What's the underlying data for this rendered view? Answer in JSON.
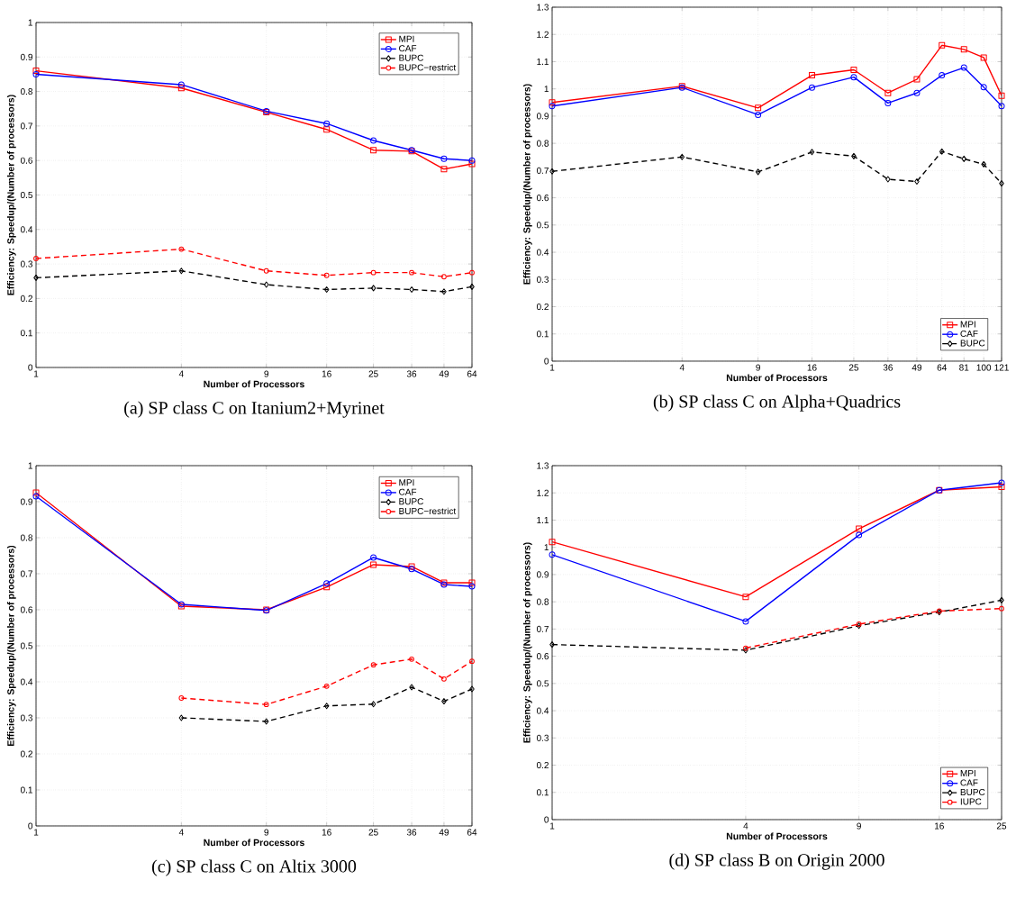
{
  "chart_data": [
    {
      "type": "line",
      "title": "(a) SP class C on Itanium2+Myrinet",
      "xlabel": "Number of Processors",
      "ylabel": "Efficiency: Speedup/(Number of processors)",
      "log": "x",
      "grid": true,
      "legend": "top right",
      "x": [
        1,
        4,
        9,
        16,
        25,
        36,
        49,
        64
      ],
      "xlim": [
        1,
        64
      ],
      "xticks": [
        1,
        4,
        9,
        16,
        25,
        36,
        49,
        64
      ],
      "ylim": [
        0,
        1
      ],
      "yticks": [
        0,
        0.1,
        0.2,
        0.3,
        0.4,
        0.5,
        0.6,
        0.7,
        0.8,
        0.9,
        1
      ],
      "series": [
        {
          "name": "MPI",
          "color": "#ff0000",
          "marker": "square",
          "line_style": "solid",
          "values": [
            0.86,
            0.81,
            0.74,
            0.69,
            0.63,
            0.627,
            0.575,
            0.59
          ]
        },
        {
          "name": "CAF",
          "color": "#0000ff",
          "marker": "circle",
          "line_style": "solid",
          "values": [
            0.85,
            0.82,
            0.743,
            0.707,
            0.658,
            0.63,
            0.605,
            0.6
          ]
        },
        {
          "name": "BUPC",
          "color": "#000000",
          "marker": "diamond",
          "line_style": "dashed",
          "values": [
            0.26,
            0.28,
            0.24,
            0.226,
            0.23,
            0.226,
            0.22,
            0.234
          ]
        },
        {
          "name": "BUPC−restrict",
          "color": "#ff0000",
          "marker": "circle",
          "line_style": "dashed",
          "values": [
            0.316,
            0.343,
            0.28,
            0.267,
            0.275,
            0.275,
            0.263,
            0.275
          ]
        }
      ]
    },
    {
      "type": "line",
      "title": "(b) SP class C on Alpha+Quadrics",
      "xlabel": "Number of Processors",
      "ylabel": "Efficiency: Speedup/(Number of processors)",
      "log": "x",
      "grid": true,
      "legend": "bottom right",
      "x": [
        1,
        4,
        9,
        16,
        25,
        36,
        49,
        64,
        81,
        100,
        121
      ],
      "xlim": [
        1,
        121
      ],
      "xticks": [
        1,
        4,
        9,
        16,
        25,
        36,
        49,
        64,
        81,
        100,
        121
      ],
      "ylim": [
        0,
        1.3
      ],
      "yticks": [
        0,
        0.1,
        0.2,
        0.3,
        0.4,
        0.5,
        0.6,
        0.7,
        0.8,
        0.9,
        1,
        1.1,
        1.2,
        1.3
      ],
      "series": [
        {
          "name": "MPI",
          "color": "#ff0000",
          "marker": "square",
          "line_style": "solid",
          "values": [
            0.95,
            1.01,
            0.93,
            1.05,
            1.07,
            0.985,
            1.035,
            1.16,
            1.145,
            1.115,
            0.975
          ]
        },
        {
          "name": "CAF",
          "color": "#0000ff",
          "marker": "circle",
          "line_style": "solid",
          "values": [
            0.937,
            1.005,
            0.905,
            1.005,
            1.043,
            0.948,
            0.985,
            1.05,
            1.078,
            1.006,
            0.937
          ]
        },
        {
          "name": "BUPC",
          "color": "#000000",
          "marker": "diamond",
          "line_style": "dashed",
          "values": [
            0.697,
            0.75,
            0.695,
            0.768,
            0.753,
            0.668,
            0.66,
            0.77,
            0.743,
            0.723,
            0.653
          ]
        }
      ]
    },
    {
      "type": "line",
      "title": "(c) SP class C on Altix 3000",
      "xlabel": "Number of Processors",
      "ylabel": "Efficiency: Speedup/(Number of processors)",
      "log": "x",
      "grid": true,
      "legend": "top right",
      "x": [
        1,
        4,
        9,
        16,
        25,
        36,
        49,
        64
      ],
      "xlim": [
        1,
        64
      ],
      "xticks": [
        1,
        4,
        9,
        16,
        25,
        36,
        49,
        64
      ],
      "ylim": [
        0,
        1
      ],
      "yticks": [
        0,
        0.1,
        0.2,
        0.3,
        0.4,
        0.5,
        0.6,
        0.7,
        0.8,
        0.9,
        1
      ],
      "series": [
        {
          "name": "MPI",
          "color": "#ff0000",
          "marker": "square",
          "line_style": "solid",
          "values": [
            0.925,
            0.61,
            0.6,
            0.663,
            0.725,
            0.72,
            0.675,
            0.675
          ]
        },
        {
          "name": "CAF",
          "color": "#0000ff",
          "marker": "circle",
          "line_style": "solid",
          "values": [
            0.915,
            0.615,
            0.598,
            0.673,
            0.745,
            0.713,
            0.67,
            0.665
          ]
        },
        {
          "name": "BUPC",
          "color": "#000000",
          "marker": "diamond",
          "line_style": "dashed",
          "values": [
            null,
            0.3,
            0.29,
            0.333,
            0.338,
            0.385,
            0.346,
            0.38
          ]
        },
        {
          "name": "BUPC−restrict",
          "color": "#ff0000",
          "marker": "circle",
          "line_style": "dashed",
          "values": [
            null,
            0.355,
            0.337,
            0.388,
            0.447,
            0.463,
            0.408,
            0.457
          ]
        }
      ]
    },
    {
      "type": "line",
      "title": "(d) SP class B on Origin 2000",
      "xlabel": "Number of Processors",
      "ylabel": "Efficiency: Speedup/(Number of processors)",
      "log": "x",
      "grid": true,
      "legend": "bottom right",
      "x": [
        1,
        4,
        9,
        16,
        25
      ],
      "xlim": [
        1,
        25
      ],
      "xticks": [
        1,
        4,
        9,
        16,
        25
      ],
      "ylim": [
        0,
        1.3
      ],
      "yticks": [
        0,
        0.1,
        0.2,
        0.3,
        0.4,
        0.5,
        0.6,
        0.7,
        0.8,
        0.9,
        1,
        1.1,
        1.2,
        1.3
      ],
      "series": [
        {
          "name": "MPI",
          "color": "#ff0000",
          "marker": "square",
          "line_style": "solid",
          "values": [
            1.02,
            0.818,
            1.068,
            1.21,
            1.222
          ]
        },
        {
          "name": "CAF",
          "color": "#0000ff",
          "marker": "circle",
          "line_style": "solid",
          "values": [
            0.973,
            0.728,
            1.045,
            1.21,
            1.237
          ]
        },
        {
          "name": "BUPC",
          "color": "#000000",
          "marker": "diamond",
          "line_style": "dashed",
          "values": [
            0.643,
            0.622,
            0.712,
            0.762,
            0.806
          ]
        },
        {
          "name": "IUPC",
          "color": "#ff0000",
          "marker": "circle",
          "line_style": "dashed",
          "values": [
            null,
            0.63,
            0.718,
            0.766,
            0.775
          ]
        }
      ]
    }
  ]
}
